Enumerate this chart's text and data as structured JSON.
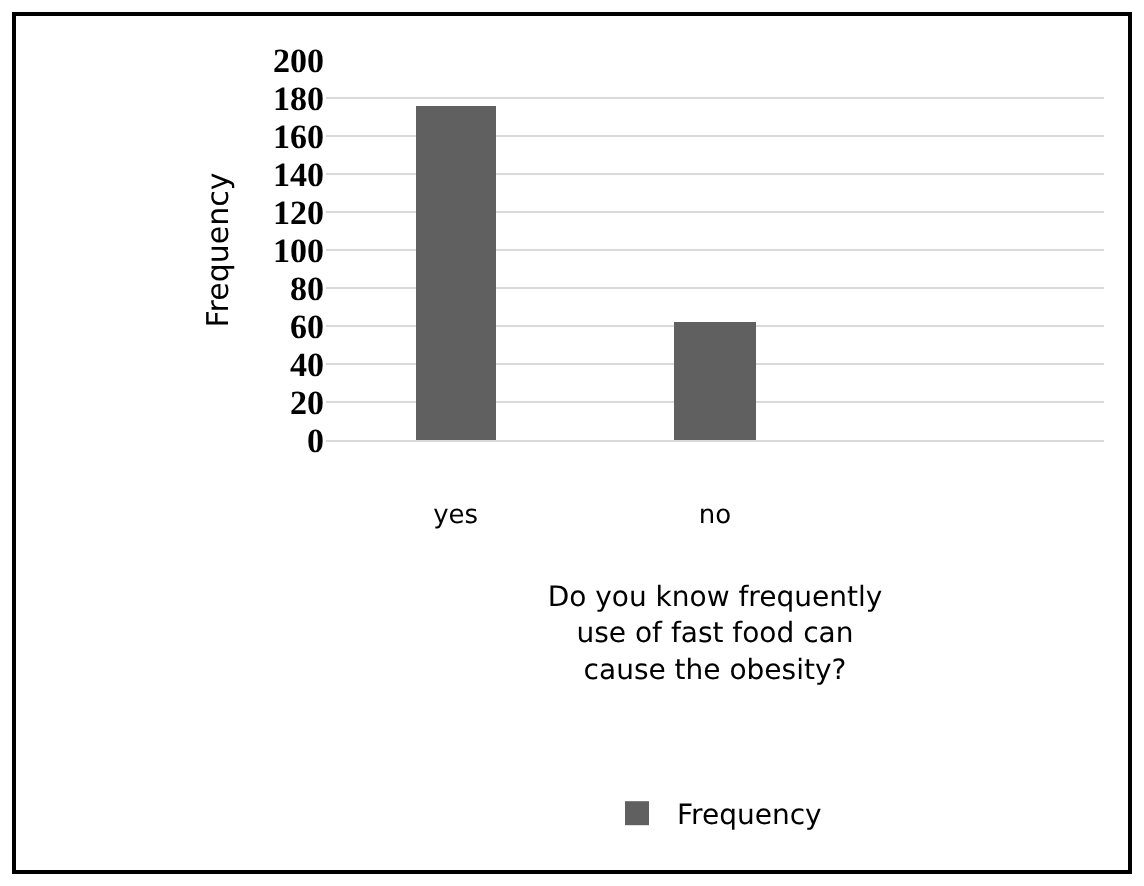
{
  "chart_data": {
    "type": "bar",
    "categories": [
      "yes",
      "no",
      null
    ],
    "xlabel": "Do you know frequently use of fast food can cause the obesity?",
    "ylabel": "Frequency",
    "series": [
      {
        "name": "Frequency",
        "color": "#606060",
        "values": [
          176,
          62,
          null
        ]
      }
    ],
    "ylim": [
      0,
      200
    ],
    "yticks": [
      0,
      20,
      40,
      60,
      80,
      100,
      120,
      140,
      160,
      180,
      200
    ],
    "grid": "y",
    "legend": "bottom"
  }
}
